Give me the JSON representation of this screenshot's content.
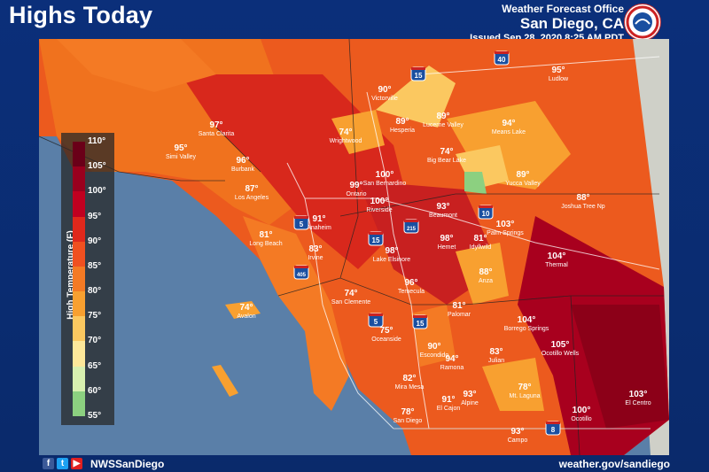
{
  "header": {
    "title": "Highs Today",
    "office": "Weather Forecast Office",
    "location": "San Diego, CA",
    "issued": "Issued Sep 28, 2020 8:25 AM PDT"
  },
  "legend": {
    "title": "High Temperature (F)",
    "ticks": [
      "110°",
      "105°",
      "100°",
      "95°",
      "90°",
      "85°",
      "80°",
      "75°",
      "70°",
      "65°",
      "60°",
      "55°"
    ],
    "colors": [
      "#6a0018",
      "#99001e",
      "#c00020",
      "#e0281c",
      "#f05020",
      "#f47a24",
      "#f8a030",
      "#fbc860",
      "#fde89a",
      "#d8f0b0",
      "#8cd080",
      "#3aa844"
    ]
  },
  "places": [
    {
      "temp": "97°",
      "city": "Santa Clarita"
    },
    {
      "temp": "95°",
      "city": "Simi Valley"
    },
    {
      "temp": "96°",
      "city": "Burbank"
    },
    {
      "temp": "87°",
      "city": "Los Angeles"
    },
    {
      "temp": "81°",
      "city": "Long Beach"
    },
    {
      "temp": "74°",
      "city": "Avalon"
    },
    {
      "temp": "91°",
      "city": "Anaheim"
    },
    {
      "temp": "83°",
      "city": "Irvine"
    },
    {
      "temp": "74°",
      "city": "San Clemente"
    },
    {
      "temp": "75°",
      "city": "Oceanside"
    },
    {
      "temp": "82°",
      "city": "Mira Mesa"
    },
    {
      "temp": "78°",
      "city": "San Diego"
    },
    {
      "temp": "91°",
      "city": "El Cajon"
    },
    {
      "temp": "90°",
      "city": "Escondido"
    },
    {
      "temp": "94°",
      "city": "Ramona"
    },
    {
      "temp": "93°",
      "city": "Alpine"
    },
    {
      "temp": "83°",
      "city": "Julian"
    },
    {
      "temp": "78°",
      "city": "Mt. Laguna"
    },
    {
      "temp": "93°",
      "city": "Campo"
    },
    {
      "temp": "81°",
      "city": "Palomar"
    },
    {
      "temp": "96°",
      "city": "Temecula"
    },
    {
      "temp": "98°",
      "city": "Lake Elsinore"
    },
    {
      "temp": "98°",
      "city": "Hemet"
    },
    {
      "temp": "81°",
      "city": "Idyllwild"
    },
    {
      "temp": "88°",
      "city": "Anza"
    },
    {
      "temp": "100°",
      "city": "Riverside"
    },
    {
      "temp": "99°",
      "city": "Ontario"
    },
    {
      "temp": "100°",
      "city": "San Bernardino"
    },
    {
      "temp": "93°",
      "city": "Beaumont"
    },
    {
      "temp": "74°",
      "city": "Wrightwood"
    },
    {
      "temp": "90°",
      "city": "Victorville"
    },
    {
      "temp": "89°",
      "city": "Hesperia"
    },
    {
      "temp": "89°",
      "city": "Lucerne Valley"
    },
    {
      "temp": "74°",
      "city": "Big Bear Lake"
    },
    {
      "temp": "94°",
      "city": "Means Lake"
    },
    {
      "temp": "95°",
      "city": "Ludlow"
    },
    {
      "temp": "89°",
      "city": "Yucca Valley"
    },
    {
      "temp": "88°",
      "city": "Joshua Tree Np"
    },
    {
      "temp": "103°",
      "city": "Palm Springs"
    },
    {
      "temp": "104°",
      "city": "Thermal"
    },
    {
      "temp": "104°",
      "city": "Borrego Springs"
    },
    {
      "temp": "105°",
      "city": "Ocotillo Wells"
    },
    {
      "temp": "100°",
      "city": "Ocotillo"
    },
    {
      "temp": "103°",
      "city": "El Centro"
    }
  ],
  "highways": [
    "15",
    "40",
    "5",
    "405",
    "215",
    "10",
    "15",
    "5",
    "15",
    "8"
  ],
  "footer": {
    "social": [
      "f",
      "t",
      "▶"
    ],
    "handle": "NWSSanDiego",
    "url": "weather.gov/sandiego"
  }
}
